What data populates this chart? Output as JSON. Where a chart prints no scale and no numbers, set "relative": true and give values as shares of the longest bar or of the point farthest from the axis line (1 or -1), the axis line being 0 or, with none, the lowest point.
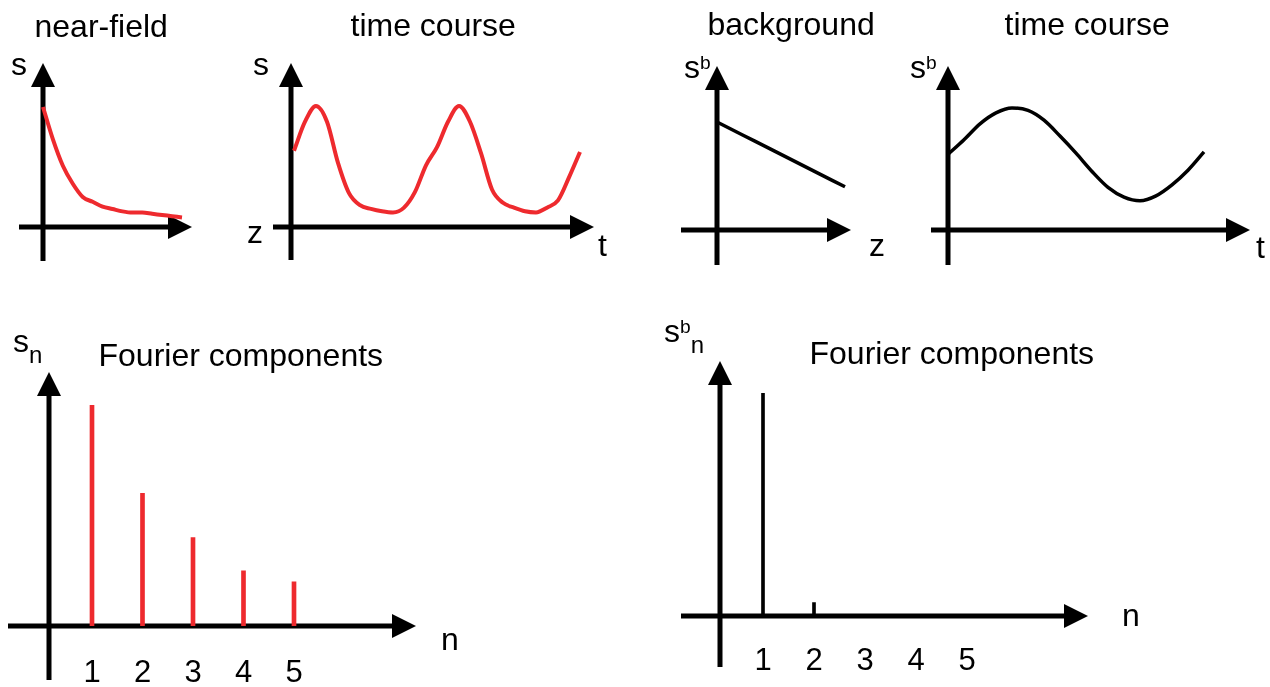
{
  "chart_data": [
    {
      "type": "line",
      "title": "near-field",
      "ylabel": "s",
      "xlabel": "z",
      "relative": true,
      "color": "#ee2a2e",
      "categories": [
        null,
        null,
        null,
        null,
        null,
        null,
        null,
        null,
        null,
        null,
        null,
        null,
        null,
        null,
        null
      ],
      "values": [
        1,
        0.73,
        0.51,
        0.36,
        0.25,
        0.21,
        0.17,
        0.15,
        0.13,
        0.12,
        0.12,
        0.11,
        0.1,
        0.09,
        0.08
      ]
    },
    {
      "type": "line",
      "title": "time course",
      "ylabel": "s",
      "xlabel": "t",
      "relative": true,
      "color": "#ee2a2e",
      "categories": [
        null,
        null,
        null,
        null,
        null,
        null,
        null,
        null,
        null,
        null,
        null,
        null,
        null,
        null,
        null,
        null,
        null,
        null,
        null,
        null,
        null,
        null,
        null,
        null,
        null,
        null,
        null
      ],
      "values": [
        0.63,
        0.87,
        1,
        0.87,
        0.53,
        0.28,
        0.18,
        0.15,
        0.13,
        0.12,
        0.16,
        0.29,
        0.51,
        0.66,
        0.87,
        1,
        0.87,
        0.61,
        0.31,
        0.2,
        0.16,
        0.13,
        0.12,
        0.16,
        0.22,
        0.41,
        0.62
      ]
    },
    {
      "type": "line",
      "title": "background",
      "ylabel": "s$^{b}$",
      "xlabel": "z",
      "relative": true,
      "color": "#000000",
      "categories": [
        null,
        null,
        null,
        null,
        null,
        null
      ],
      "values": [
        1,
        0.88,
        0.76,
        0.64,
        0.52,
        0.4
      ]
    },
    {
      "type": "line",
      "title": "time course",
      "ylabel": "s$^{b}$",
      "xlabel": "t",
      "relative": true,
      "color": "#000000",
      "categories": [
        null,
        null,
        null,
        null,
        null,
        null,
        null,
        null,
        null,
        null,
        null,
        null,
        null,
        null,
        null,
        null,
        null
      ],
      "values": [
        0.62,
        0.74,
        0.87,
        0.96,
        1,
        0.98,
        0.9,
        0.77,
        0.63,
        0.48,
        0.35,
        0.27,
        0.24,
        0.28,
        0.37,
        0.49,
        0.64
      ]
    },
    {
      "type": "bar",
      "title": "Fourier components",
      "ylabel": "s$_{n}$",
      "xlabel": "n",
      "relative": true,
      "color": "#ee2a2e",
      "categories": [
        "1",
        "2",
        "3",
        "4",
        "5"
      ],
      "values": [
        1,
        0.6,
        0.4,
        0.25,
        0.2
      ]
    },
    {
      "type": "bar",
      "title": "Fourier components",
      "ylabel": "s$^{b}$$_{n}$",
      "xlabel": "n",
      "relative": true,
      "color": "#000000",
      "categories": [
        "1",
        "2",
        "3",
        "4",
        "5"
      ],
      "values": [
        1,
        0.06,
        0,
        0,
        0
      ]
    }
  ]
}
